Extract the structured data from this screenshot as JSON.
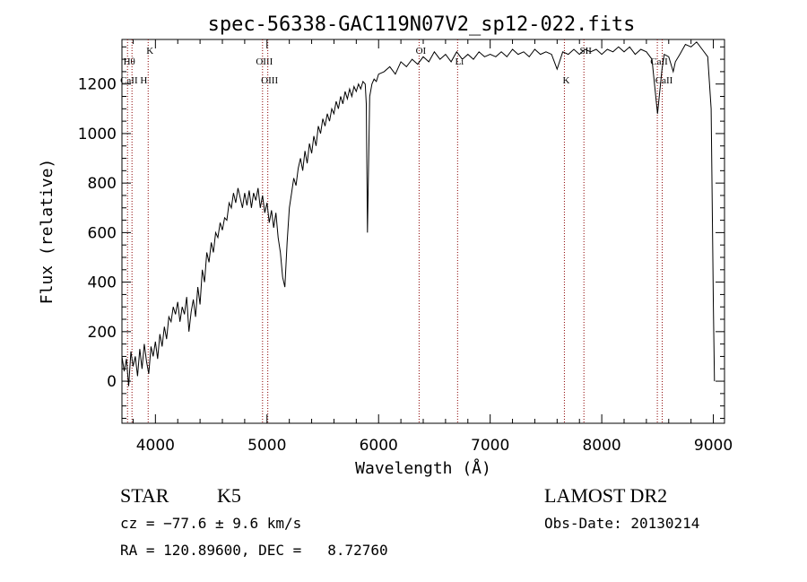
{
  "chart_data": {
    "type": "line",
    "title": "spec-56338-GAC119N07V2_sp12-022.fits",
    "xlabel": "Wavelength (Å)",
    "ylabel": "Flux (relative)",
    "xlim": [
      3700,
      9100
    ],
    "ylim": [
      -170,
      1380
    ],
    "xticks": [
      4000,
      5000,
      6000,
      7000,
      8000,
      9000
    ],
    "yticks": [
      0,
      200,
      400,
      600,
      800,
      1000,
      1200
    ],
    "grid": false,
    "series": [
      {
        "x": [
          3700,
          3720,
          3740,
          3760,
          3780,
          3800,
          3820,
          3840,
          3860,
          3880,
          3900,
          3920,
          3940,
          3960,
          3980,
          4000,
          4020,
          4040,
          4060,
          4080,
          4100,
          4120,
          4140,
          4160,
          4180,
          4200,
          4220,
          4240,
          4260,
          4280,
          4300,
          4320,
          4340,
          4360,
          4380,
          4400,
          4420,
          4440,
          4460,
          4480,
          4500,
          4520,
          4540,
          4560,
          4580,
          4600,
          4620,
          4640,
          4660,
          4680,
          4700,
          4720,
          4740,
          4760,
          4780,
          4800,
          4820,
          4840,
          4860,
          4880,
          4900,
          4920,
          4940,
          4960,
          4980,
          5000,
          5020,
          5040,
          5060,
          5080,
          5100,
          5120,
          5140,
          5160,
          5180,
          5200,
          5220,
          5240,
          5260,
          5280,
          5300,
          5320,
          5340,
          5360,
          5380,
          5400,
          5420,
          5440,
          5460,
          5480,
          5500,
          5520,
          5540,
          5560,
          5580,
          5600,
          5620,
          5640,
          5660,
          5680,
          5700,
          5720,
          5740,
          5760,
          5780,
          5800,
          5820,
          5840,
          5860,
          5880,
          5890,
          5900,
          5920,
          5940,
          5960,
          5980,
          6000,
          6050,
          6100,
          6150,
          6200,
          6250,
          6300,
          6350,
          6400,
          6450,
          6500,
          6550,
          6600,
          6650,
          6700,
          6750,
          6800,
          6850,
          6900,
          6950,
          7000,
          7050,
          7100,
          7150,
          7200,
          7250,
          7300,
          7350,
          7400,
          7450,
          7500,
          7550,
          7600,
          7650,
          7700,
          7750,
          7800,
          7850,
          7900,
          7950,
          8000,
          8050,
          8100,
          8150,
          8200,
          8250,
          8300,
          8350,
          8400,
          8450,
          8500,
          8540,
          8560,
          8600,
          8640,
          8660,
          8700,
          8750,
          8800,
          8850,
          8900,
          8950,
          8980,
          9000,
          9010
        ],
        "y": [
          100,
          40,
          90,
          -20,
          120,
          60,
          100,
          20,
          130,
          50,
          150,
          80,
          30,
          140,
          100,
          160,
          90,
          190,
          140,
          220,
          170,
          260,
          240,
          300,
          270,
          320,
          240,
          300,
          270,
          340,
          200,
          280,
          330,
          260,
          380,
          310,
          450,
          400,
          520,
          480,
          560,
          520,
          600,
          580,
          640,
          610,
          660,
          650,
          720,
          700,
          760,
          720,
          780,
          740,
          700,
          760,
          710,
          770,
          700,
          760,
          730,
          780,
          700,
          750,
          680,
          720,
          640,
          690,
          620,
          680,
          580,
          520,
          420,
          380,
          560,
          700,
          760,
          820,
          790,
          860,
          900,
          850,
          930,
          880,
          960,
          920,
          990,
          950,
          1030,
          1000,
          1060,
          1030,
          1080,
          1050,
          1100,
          1080,
          1130,
          1100,
          1150,
          1120,
          1170,
          1140,
          1180,
          1150,
          1190,
          1170,
          1200,
          1180,
          1210,
          1200,
          1120,
          600,
          1150,
          1200,
          1220,
          1210,
          1240,
          1250,
          1270,
          1240,
          1290,
          1270,
          1300,
          1280,
          1310,
          1290,
          1330,
          1300,
          1320,
          1290,
          1330,
          1300,
          1320,
          1300,
          1330,
          1310,
          1320,
          1310,
          1330,
          1310,
          1340,
          1320,
          1330,
          1310,
          1340,
          1320,
          1330,
          1320,
          1260,
          1330,
          1320,
          1340,
          1320,
          1340,
          1330,
          1340,
          1320,
          1340,
          1330,
          1350,
          1330,
          1350,
          1320,
          1340,
          1330,
          1300,
          1080,
          1260,
          1320,
          1310,
          1250,
          1290,
          1320,
          1360,
          1350,
          1370,
          1340,
          1310,
          1100,
          300,
          0
        ]
      }
    ],
    "lines": [
      {
        "x": 3750,
        "labels": [
          "Hθ"
        ]
      },
      {
        "x": 3790,
        "labels": [
          "CaII H"
        ]
      },
      {
        "x": 3935,
        "labels": [
          "K"
        ]
      },
      {
        "x": 4960,
        "labels": [
          "OIII"
        ]
      },
      {
        "x": 5007,
        "labels": [
          "OIII"
        ]
      },
      {
        "x": 6363,
        "labels": [
          "OI"
        ]
      },
      {
        "x": 6708,
        "labels": [
          "Li"
        ]
      },
      {
        "x": 7665,
        "labels": [
          "K"
        ]
      },
      {
        "x": 7840,
        "labels": [
          "SII"
        ]
      },
      {
        "x": 8498,
        "labels": [
          "CaII"
        ]
      },
      {
        "x": 8542,
        "labels": [
          "CaII"
        ]
      }
    ],
    "colors": {
      "spectrum": "#000000",
      "lines": "#8b0000"
    }
  },
  "info": {
    "class": "STAR",
    "subclass": "K5",
    "survey": "LAMOST DR2",
    "cz": "cz = −77.6 ± 9.6 km/s",
    "obs_date": "Obs-Date: 20130214",
    "radec": "RA = 120.89600, DEC =   8.72760"
  }
}
